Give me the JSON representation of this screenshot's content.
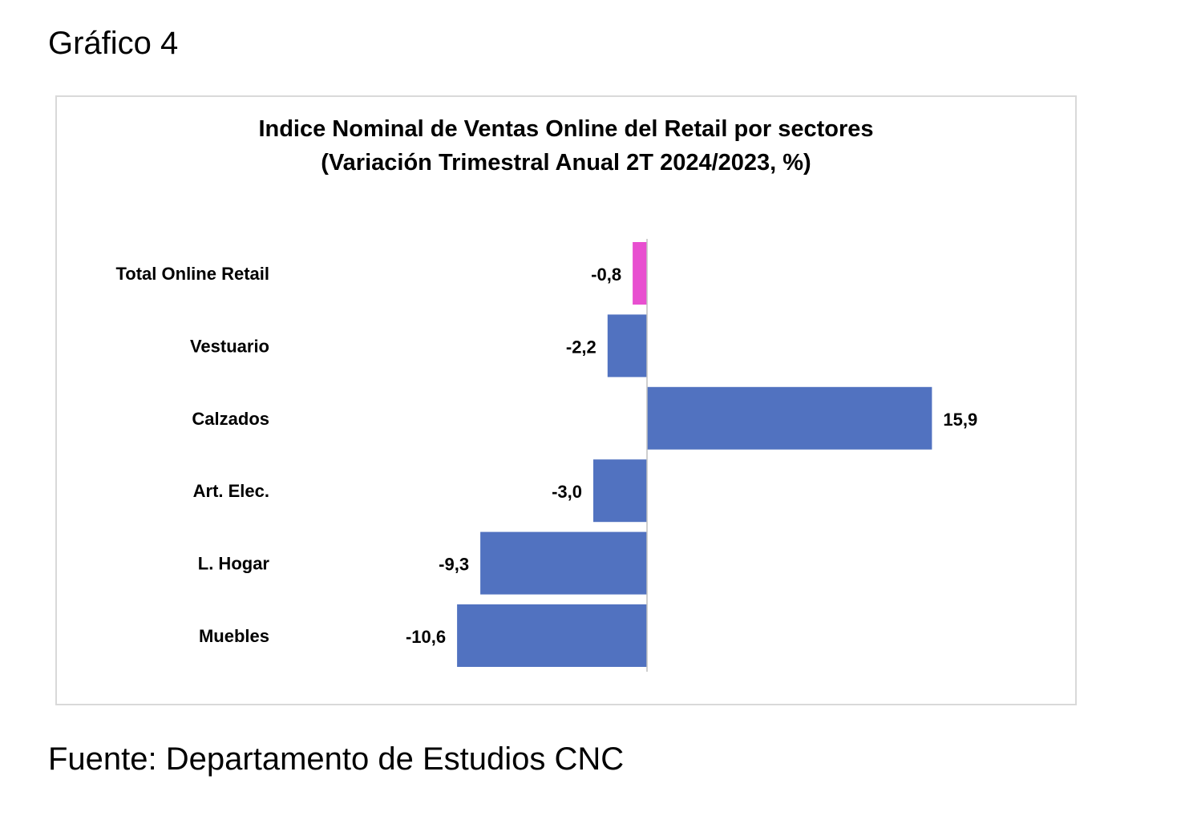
{
  "figure_label": "Gráfico 4",
  "source_note": "Fuente: Departamento de Estudios CNC",
  "colors": {
    "highlight_bar": "#e84fd0",
    "default_bar": "#5172c0",
    "axis_line": "#bfbfbf",
    "frame_border": "#d9d9d9"
  },
  "chart_data": {
    "type": "bar",
    "orientation": "horizontal",
    "title": "Indice Nominal de Ventas Online del Retail  por sectores",
    "subtitle": "(Variación Trimestral Anual 2T 2024/2023, %)",
    "xlabel": "",
    "ylabel": "",
    "categories": [
      "Total Online Retail",
      "Vestuario",
      "Calzados",
      "Art. Elec.",
      "L. Hogar",
      "Muebles"
    ],
    "values": [
      -0.8,
      -2.2,
      15.9,
      -3.0,
      -9.3,
      -10.6
    ],
    "value_labels": [
      "-0,8",
      "-2,2",
      "15,9",
      "-3,0",
      "-9,3",
      "-10,6"
    ],
    "highlighted_category": "Total Online Retail",
    "xlim": [
      -16,
      20
    ],
    "grid": false,
    "legend": "none"
  }
}
